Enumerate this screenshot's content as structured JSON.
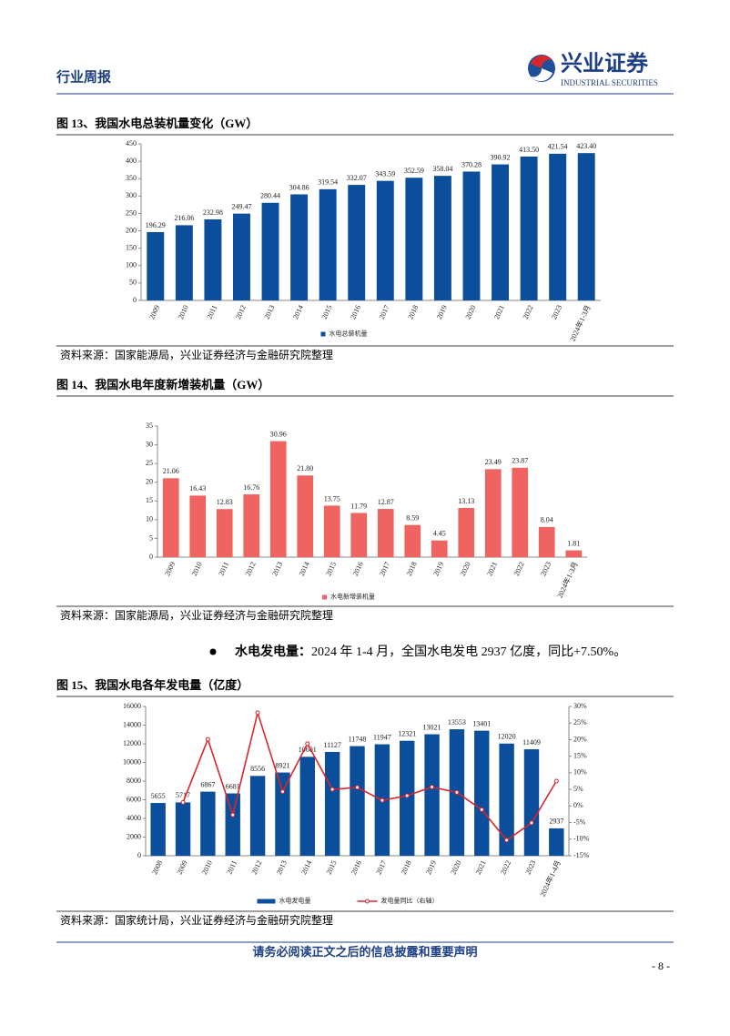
{
  "header": {
    "section": "行业周报",
    "logo_cn": "兴业证券",
    "logo_en": "INDUSTRIAL SECURITIES"
  },
  "chart_data": [
    {
      "type": "bar",
      "title": "图 13、我国水电总装机量变化（GW）",
      "categories": [
        "2009",
        "2010",
        "2011",
        "2012",
        "2013",
        "2014",
        "2015",
        "2016",
        "2017",
        "2018",
        "2019",
        "2020",
        "2021",
        "2022",
        "2023",
        "2024年1-3月"
      ],
      "series": [
        {
          "name": "水电总装机量",
          "color": "#0b4f9c",
          "values": [
            196.29,
            216.06,
            232.98,
            249.47,
            280.44,
            304.86,
            319.54,
            332.07,
            343.59,
            352.59,
            358.04,
            370.28,
            390.92,
            413.5,
            421.54,
            423.4
          ],
          "value_labels": [
            "196.29",
            "216.06",
            "232.98",
            "249.47",
            "280.44",
            "304.86",
            "319.54",
            "332.07",
            "343.59",
            "352.59",
            "358.04",
            "370.28",
            "390.92",
            "413.50",
            "421.54",
            "423.40"
          ]
        }
      ],
      "ylim": [
        0,
        450
      ],
      "yticks": [
        0,
        50,
        100,
        150,
        200,
        250,
        300,
        350,
        400,
        450
      ],
      "grid": false,
      "source": "资料来源：国家能源局，兴业证券经济与金融研究院整理"
    },
    {
      "type": "bar",
      "title": "图 14、我国水电年度新增装机量（GW）",
      "categories": [
        "2009",
        "2010",
        "2011",
        "2012",
        "2013",
        "2014",
        "2015",
        "2016",
        "2017",
        "2018",
        "2019",
        "2020",
        "2021",
        "2022",
        "2023",
        "2024年1-3月"
      ],
      "series": [
        {
          "name": "水电新增装机量",
          "color": "#ef6461",
          "values": [
            21.06,
            16.43,
            12.83,
            16.76,
            30.96,
            21.8,
            13.75,
            11.79,
            12.87,
            8.59,
            4.45,
            13.13,
            23.49,
            23.87,
            8.04,
            1.81
          ],
          "value_labels": [
            "21.06",
            "16.43",
            "12.83",
            "16.76",
            "30.96",
            "21.80",
            "13.75",
            "11.79",
            "12.87",
            "8.59",
            "4.45",
            "13.13",
            "23.49",
            "23.87",
            "8.04",
            "1.81"
          ]
        }
      ],
      "ylim": [
        0,
        35
      ],
      "yticks": [
        0,
        5,
        10,
        15,
        20,
        25,
        30,
        35
      ],
      "grid": false,
      "source": "资料来源：国家能源局，兴业证券经济与金融研究院整理"
    },
    {
      "type": "combo",
      "title": "图 15、我国水电各年发电量（亿度）",
      "categories": [
        "2008",
        "2009",
        "2010",
        "2011",
        "2012",
        "2013",
        "2014",
        "2015",
        "2016",
        "2017",
        "2018",
        "2019",
        "2020",
        "2021",
        "2022",
        "2023",
        "2024年1-4月"
      ],
      "series": [
        {
          "name": "水电发电量",
          "type": "bar",
          "color": "#0b4f9c",
          "values": [
            5655,
            5717,
            6867,
            6681,
            8556,
            8921,
            10601,
            11127,
            11748,
            11947,
            12321,
            13021,
            13553,
            13401,
            12020,
            11409,
            2937
          ]
        },
        {
          "name": "发电量同比（右轴）",
          "type": "line",
          "axis": "y2",
          "color": "#d9262c",
          "values": [
            null,
            1.1,
            20.1,
            -2.7,
            28.1,
            4.3,
            18.8,
            5.0,
            5.6,
            1.7,
            3.1,
            5.7,
            4.1,
            -1.1,
            -10.3,
            -5.1,
            7.5
          ]
        }
      ],
      "ylim": [
        0,
        16000
      ],
      "yticks": [
        0,
        2000,
        4000,
        6000,
        8000,
        10000,
        12000,
        14000,
        16000
      ],
      "y2lim": [
        -15,
        30
      ],
      "y2ticks": [
        {
          "value": -15,
          "label": "-15%"
        },
        {
          "value": -10,
          "label": "-10%"
        },
        {
          "value": -5,
          "label": "-5%"
        },
        {
          "value": 0,
          "label": "0%"
        },
        {
          "value": 5,
          "label": "5%"
        },
        {
          "value": 10,
          "label": "10%"
        },
        {
          "value": 15,
          "label": "15%"
        },
        {
          "value": 20,
          "label": "20%"
        },
        {
          "value": 25,
          "label": "25%"
        },
        {
          "value": 30,
          "label": "30%"
        }
      ],
      "grid": false,
      "source": "资料来源：国家统计局，兴业证券经济与金融研究院整理"
    }
  ],
  "bullet": {
    "label": "水电发电量：",
    "text": "2024 年 1-4 月，全国水电发电 2937 亿度，同比+7.50%。"
  },
  "footer": {
    "notice": "请务必阅读正文之后的信息披露和重要声明",
    "page": "- 8 -"
  }
}
